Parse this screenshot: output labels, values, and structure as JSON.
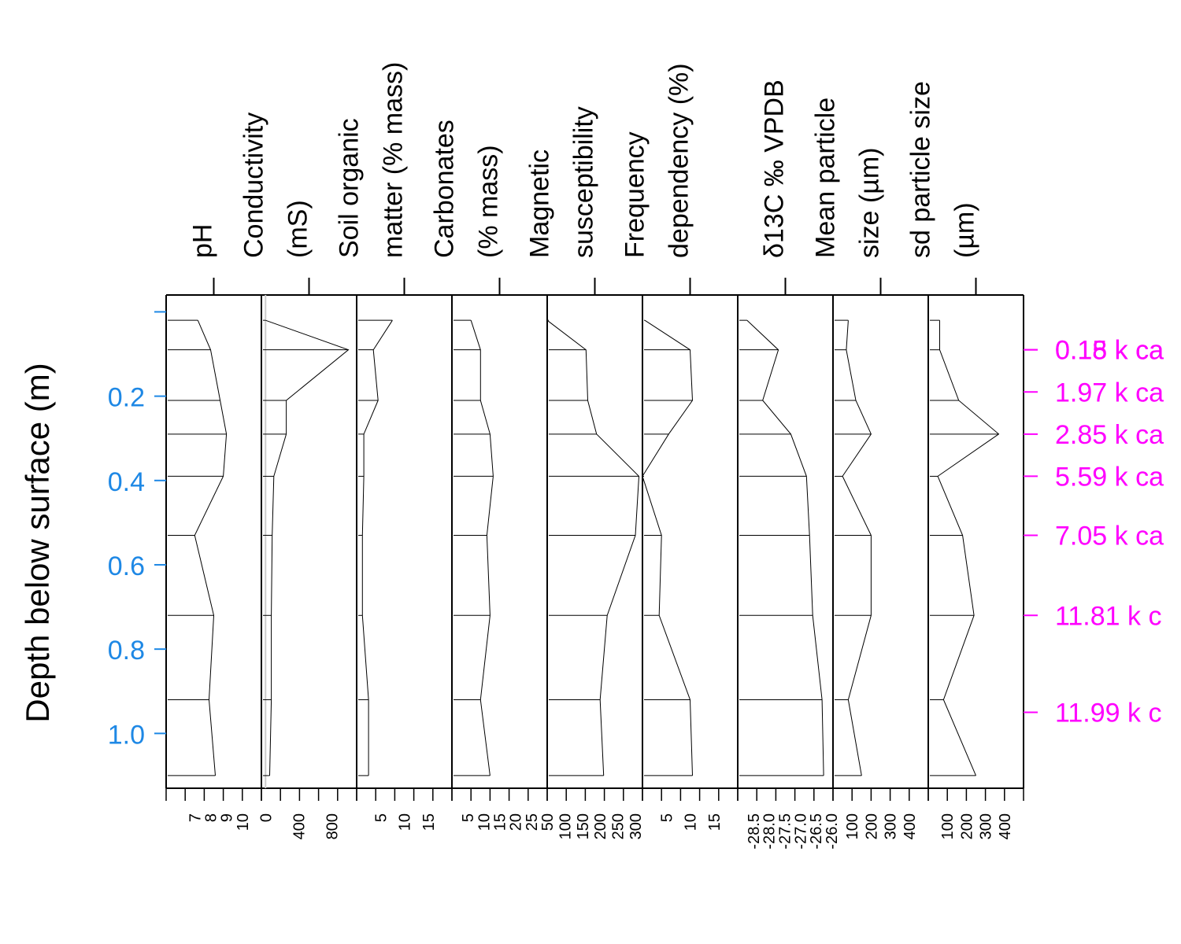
{
  "chart_data": {
    "type": "line",
    "depth_axis": {
      "label": "Depth below surface (m)",
      "ticks": [
        0.2,
        0.4,
        0.6,
        0.8,
        1.0
      ],
      "tick_labels": [
        "0.2",
        "0.4",
        "0.6",
        "0.8",
        "1.0"
      ],
      "range": [
        -0.04,
        1.13
      ],
      "color": "#1E88E5"
    },
    "depths": [
      0.02,
      0.09,
      0.21,
      0.29,
      0.39,
      0.53,
      0.72,
      0.92,
      1.1
    ],
    "age_axis": {
      "color": "#FF00FF",
      "markers": [
        {
          "depth": 0.09,
          "label": "0.18 k ca"
        },
        {
          "depth": 0.09,
          "label": "0.15 k ca"
        },
        {
          "depth": 0.19,
          "label": "1.97 k ca"
        },
        {
          "depth": 0.29,
          "label": "2.85 k ca"
        },
        {
          "depth": 0.39,
          "label": "5.59 k ca"
        },
        {
          "depth": 0.53,
          "label": "7.05 k ca"
        },
        {
          "depth": 0.72,
          "label": "11.81 k c"
        },
        {
          "depth": 0.95,
          "label": "11.99 k c"
        }
      ]
    },
    "series": [
      {
        "name": "pH",
        "title_lines": [
          "pH"
        ],
        "xlim": [
          5.2,
          11.2
        ],
        "ticks": [
          7,
          8,
          9,
          10
        ],
        "tick_labels": [
          "7",
          "8",
          "9",
          "10"
        ],
        "values": [
          7.2,
          8.0,
          8.6,
          9.0,
          8.8,
          7.0,
          8.2,
          7.9,
          8.3
        ]
      },
      {
        "name": "Conductivity (mS)",
        "title_lines": [
          "Conductivity",
          "(mS)"
        ],
        "xlim": [
          -50,
          1100
        ],
        "ticks": [
          0,
          400,
          800
        ],
        "tick_labels": [
          "0",
          "400",
          "800"
        ],
        "values": [
          0,
          1000,
          250,
          250,
          100,
          80,
          70,
          70,
          50
        ]
      },
      {
        "name": "Soil organic matter (% mass)",
        "title_lines": [
          "Soil organic",
          "matter (% mass)"
        ],
        "xlim": [
          0,
          20
        ],
        "ticks": [
          5,
          10,
          15
        ],
        "tick_labels": [
          "5",
          "10",
          "15"
        ],
        "values": [
          7.5,
          3.5,
          4.5,
          1.5,
          1.5,
          1.2,
          1.2,
          2.5,
          2.5
        ]
      },
      {
        "name": "Carbonates (% mass)",
        "title_lines": [
          "Carbonates",
          "(% mass)"
        ],
        "xlim": [
          0,
          30
        ],
        "ticks": [
          5,
          10,
          15,
          20,
          25
        ],
        "tick_labels": [
          "5",
          "10",
          "15",
          "20",
          "25"
        ],
        "values": [
          6,
          9,
          9,
          12,
          13,
          11,
          12,
          9,
          12
        ]
      },
      {
        "name": "Magnetic susceptibility",
        "title_lines": [
          "Magnetic",
          "susceptibility"
        ],
        "xlim": [
          50,
          320
        ],
        "ticks": [
          50,
          100,
          150,
          200,
          250,
          300
        ],
        "tick_labels": [
          "50",
          "100",
          "150",
          "200",
          "250",
          "300"
        ],
        "values": [
          50,
          160,
          165,
          190,
          310,
          300,
          220,
          200,
          210
        ]
      },
      {
        "name": "Frequency dependency (%)",
        "title_lines": [
          "Frequency",
          "dependency (%)"
        ],
        "xlim": [
          0,
          20
        ],
        "ticks": [
          5,
          10,
          15
        ],
        "tick_labels": [
          "5",
          "10",
          "15"
        ],
        "values": [
          0.5,
          10,
          10.5,
          5.5,
          0,
          4,
          3.5,
          10,
          10.5
        ]
      },
      {
        "name": "δ13C ‰ VPDB",
        "title_lines": [
          "δ13C ‰ VPDB"
        ],
        "xlim": [
          -29.0,
          -25.95
        ],
        "ticks": [
          -28.5,
          -28.0,
          -27.5,
          -27.0,
          -26.5,
          -26.0
        ],
        "tick_labels": [
          "-28.5",
          "-28.0",
          "-27.5",
          "-27.0",
          "-26.5",
          "-26.0"
        ],
        "values": [
          -28.7,
          -27.7,
          -28.2,
          -27.3,
          -26.8,
          -26.7,
          -26.6,
          -26.3,
          -26.25
        ]
      },
      {
        "name": "Mean particle size (µm)",
        "title_lines": [
          "Mean particle",
          "size (µm)"
        ],
        "xlim": [
          0,
          500
        ],
        "ticks": [
          100,
          200,
          300,
          400
        ],
        "tick_labels": [
          "100",
          "200",
          "300",
          "400"
        ],
        "values": [
          80,
          70,
          120,
          200,
          50,
          200,
          200,
          80,
          150
        ]
      },
      {
        "name": "sd particle size (µm)",
        "title_lines": [
          "sd particle size",
          "(µm)"
        ],
        "xlim": [
          0,
          500
        ],
        "ticks": [
          100,
          200,
          300,
          400
        ],
        "tick_labels": [
          "100",
          "200",
          "300",
          "400"
        ],
        "values": [
          60,
          60,
          160,
          370,
          50,
          180,
          240,
          80,
          250
        ]
      }
    ]
  }
}
